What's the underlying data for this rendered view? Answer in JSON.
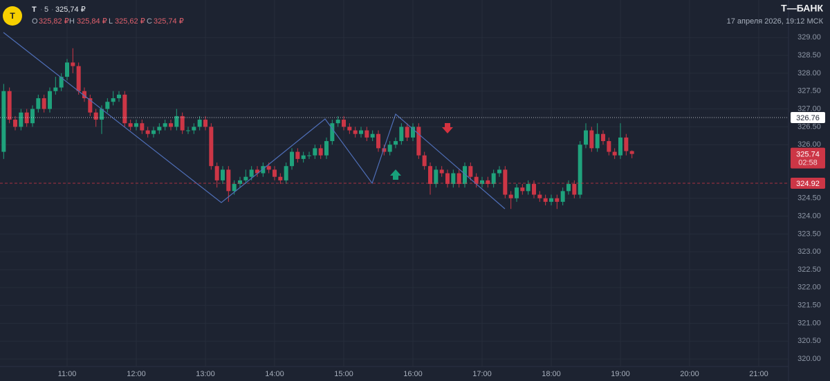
{
  "header": {
    "logo": "T",
    "ticker": "T",
    "interval": "5",
    "price": "325,74 ₽",
    "ohlc": [
      {
        "label": "O",
        "value": "325,82 ₽"
      },
      {
        "label": "H",
        "value": "325,84 ₽"
      },
      {
        "label": "L",
        "value": "325,62 ₽"
      },
      {
        "label": "C",
        "value": "325,74 ₽"
      }
    ],
    "brand": "Т—БАНК",
    "datetime": "17 апреля 2026, 19:12 МСК"
  },
  "chart_data": {
    "type": "candlestick",
    "x": [
      605,
      610,
      615,
      620,
      625,
      630,
      635,
      640,
      645,
      650,
      655,
      660,
      665,
      670,
      675,
      680,
      685,
      690,
      695,
      700,
      705,
      710,
      715,
      720,
      725,
      730,
      735,
      740,
      745,
      750,
      755,
      760,
      765,
      770,
      775,
      780,
      785,
      790,
      795,
      800,
      805,
      810,
      815,
      820,
      825,
      830,
      835,
      840,
      845,
      850,
      855,
      860,
      865,
      870,
      875,
      880,
      885,
      890,
      895,
      900,
      905,
      910,
      915,
      920,
      925,
      930,
      935,
      940,
      945,
      950,
      955,
      960,
      965,
      970,
      975,
      980,
      985,
      990,
      995,
      1000,
      1005,
      1010,
      1015,
      1020,
      1025,
      1030,
      1035,
      1040,
      1045,
      1050,
      1055,
      1060,
      1065,
      1070,
      1075,
      1080,
      1085,
      1090,
      1095,
      1100,
      1105,
      1110,
      1115,
      1120,
      1125,
      1130,
      1135,
      1140,
      1145,
      1150
    ],
    "open": [
      325.8,
      327.5,
      326.7,
      326.5,
      326.9,
      326.6,
      327.0,
      327.3,
      327.0,
      327.5,
      327.6,
      327.9,
      328.3,
      328.2,
      327.5,
      327.3,
      326.9,
      326.7,
      327.0,
      327.2,
      327.3,
      327.4,
      326.6,
      326.5,
      326.6,
      326.4,
      326.3,
      326.4,
      326.5,
      326.6,
      326.5,
      326.8,
      326.4,
      326.4,
      326.5,
      326.7,
      326.5,
      325.4,
      325.0,
      325.3,
      324.7,
      324.9,
      325.0,
      325.1,
      325.3,
      325.2,
      325.4,
      325.3,
      325.1,
      325.0,
      325.4,
      325.8,
      325.6,
      325.7,
      325.7,
      325.9,
      325.7,
      326.1,
      326.6,
      326.7,
      326.5,
      326.4,
      326.3,
      326.4,
      326.2,
      326.3,
      325.9,
      325.8,
      326.0,
      326.1,
      326.5,
      326.2,
      326.5,
      325.7,
      325.4,
      324.9,
      325.3,
      325.2,
      324.9,
      325.2,
      324.9,
      325.4,
      325.1,
      324.9,
      325.0,
      324.9,
      325.2,
      325.3,
      324.6,
      324.5,
      324.8,
      324.7,
      324.9,
      324.6,
      324.5,
      324.4,
      324.5,
      324.4,
      324.7,
      324.9,
      324.6,
      326.0,
      326.4,
      325.9,
      326.3,
      326.1,
      325.8,
      325.7,
      326.2,
      325.82
    ],
    "high": [
      327.7,
      327.6,
      326.8,
      327.0,
      327.0,
      327.1,
      327.4,
      327.4,
      327.6,
      327.9,
      328.0,
      328.4,
      328.7,
      328.3,
      327.6,
      327.4,
      327.0,
      327.1,
      327.3,
      327.5,
      327.5,
      327.5,
      326.7,
      326.7,
      326.7,
      326.5,
      326.5,
      326.6,
      326.7,
      326.7,
      327.0,
      326.9,
      326.5,
      326.6,
      326.8,
      326.8,
      326.6,
      325.5,
      325.4,
      325.4,
      325.0,
      325.1,
      325.3,
      325.4,
      325.4,
      325.5,
      325.5,
      325.4,
      325.2,
      325.5,
      325.9,
      325.9,
      325.8,
      325.8,
      326.0,
      326.0,
      326.2,
      326.7,
      326.8,
      326.8,
      326.6,
      326.5,
      326.5,
      326.5,
      326.4,
      326.4,
      326.0,
      326.1,
      326.2,
      326.6,
      326.6,
      326.6,
      326.6,
      325.8,
      325.5,
      325.4,
      325.4,
      325.3,
      325.3,
      325.3,
      325.5,
      325.5,
      325.2,
      325.1,
      325.1,
      325.3,
      325.4,
      325.4,
      324.7,
      324.9,
      324.9,
      325.0,
      325.0,
      324.7,
      324.6,
      324.6,
      324.6,
      324.8,
      325.0,
      325.0,
      326.1,
      326.6,
      326.5,
      326.6,
      326.4,
      326.2,
      325.9,
      326.6,
      326.3,
      325.84
    ],
    "low": [
      325.6,
      326.6,
      326.4,
      326.4,
      326.5,
      326.5,
      326.9,
      326.9,
      326.9,
      327.4,
      327.5,
      327.8,
      328.0,
      327.4,
      327.2,
      326.8,
      326.5,
      326.3,
      326.9,
      327.1,
      327.2,
      326.5,
      326.4,
      326.4,
      326.3,
      326.2,
      326.2,
      326.3,
      326.4,
      326.4,
      326.4,
      326.3,
      326.3,
      326.3,
      326.4,
      326.4,
      325.3,
      324.8,
      324.9,
      324.4,
      324.6,
      324.8,
      324.9,
      325.0,
      325.1,
      325.1,
      325.2,
      325.0,
      324.9,
      324.9,
      325.3,
      325.5,
      325.5,
      325.6,
      325.6,
      325.6,
      325.6,
      326.0,
      326.5,
      326.4,
      326.3,
      326.2,
      326.2,
      326.1,
      326.1,
      325.8,
      325.7,
      325.7,
      325.9,
      326.0,
      326.1,
      326.1,
      325.6,
      325.3,
      324.6,
      324.8,
      325.1,
      324.8,
      324.8,
      324.8,
      324.8,
      325.0,
      324.8,
      324.8,
      324.8,
      324.8,
      325.1,
      324.5,
      324.2,
      324.4,
      324.6,
      324.6,
      324.5,
      324.4,
      324.3,
      324.3,
      324.2,
      324.3,
      324.6,
      324.5,
      324.5,
      325.9,
      325.8,
      325.8,
      326.0,
      325.7,
      325.6,
      325.6,
      325.7,
      325.62
    ],
    "close": [
      327.5,
      326.7,
      326.5,
      326.9,
      326.6,
      327.0,
      327.3,
      327.0,
      327.5,
      327.6,
      327.9,
      328.3,
      328.2,
      327.5,
      327.3,
      326.9,
      326.7,
      327.0,
      327.2,
      327.3,
      327.4,
      326.6,
      326.5,
      326.6,
      326.4,
      326.3,
      326.4,
      326.5,
      326.6,
      326.5,
      326.8,
      326.4,
      326.4,
      326.5,
      326.7,
      326.5,
      325.4,
      325.0,
      325.3,
      324.7,
      324.9,
      325.0,
      325.1,
      325.3,
      325.2,
      325.4,
      325.3,
      325.1,
      325.0,
      325.4,
      325.8,
      325.6,
      325.7,
      325.7,
      325.9,
      325.7,
      326.1,
      326.6,
      326.7,
      326.5,
      326.4,
      326.3,
      326.4,
      326.2,
      326.3,
      325.9,
      325.8,
      326.0,
      326.1,
      326.5,
      326.2,
      326.5,
      325.7,
      325.4,
      324.9,
      325.3,
      325.2,
      324.9,
      325.2,
      324.9,
      325.4,
      325.1,
      324.9,
      325.0,
      324.9,
      325.2,
      325.3,
      324.6,
      324.5,
      324.8,
      324.7,
      324.9,
      324.6,
      324.5,
      324.4,
      324.5,
      324.4,
      324.7,
      324.9,
      324.6,
      326.0,
      326.4,
      325.9,
      326.3,
      326.1,
      325.8,
      325.7,
      326.2,
      325.82,
      325.74
    ],
    "xlim": [
      601.8,
      1285.8
    ],
    "xticks": [
      {
        "value": 660,
        "label": "11:00"
      },
      {
        "value": 720,
        "label": "12:00"
      },
      {
        "value": 780,
        "label": "13:00"
      },
      {
        "value": 840,
        "label": "14:00"
      },
      {
        "value": 900,
        "label": "15:00"
      },
      {
        "value": 960,
        "label": "16:00"
      },
      {
        "value": 1020,
        "label": "17:00"
      },
      {
        "value": 1080,
        "label": "18:00"
      },
      {
        "value": 1140,
        "label": "19:00"
      },
      {
        "value": 1200,
        "label": "20:00"
      },
      {
        "value": 1260,
        "label": "21:00"
      }
    ],
    "ylim": [
      319.79,
      330.05
    ],
    "yticks": [
      {
        "value": 320,
        "label": "320.00"
      },
      {
        "value": 320.5,
        "label": "320.50"
      },
      {
        "value": 321,
        "label": "321.00"
      },
      {
        "value": 321.5,
        "label": "321.50"
      },
      {
        "value": 322,
        "label": "322.00"
      },
      {
        "value": 322.5,
        "label": "322.50"
      },
      {
        "value": 323,
        "label": "323.00"
      },
      {
        "value": 323.5,
        "label": "323.50"
      },
      {
        "value": 324,
        "label": "324.00"
      },
      {
        "value": 324.5,
        "label": "324.50"
      },
      {
        "value": 326,
        "label": "326.00"
      },
      {
        "value": 326.5,
        "label": "326.50"
      },
      {
        "value": 327,
        "label": "327.00"
      },
      {
        "value": 327.5,
        "label": "327.50"
      },
      {
        "value": 328,
        "label": "328.00"
      },
      {
        "value": 328.5,
        "label": "328.50"
      },
      {
        "value": 329,
        "label": "329.00"
      }
    ],
    "grid": true,
    "up_color": "#1fa27c",
    "down_color": "#cc3646",
    "levels": [
      {
        "value": 326.76,
        "style": "dotted",
        "color": "#d8dce3"
      },
      {
        "value": 324.92,
        "style": "dashed",
        "color": "#cc3646"
      }
    ],
    "last_price": 325.74,
    "countdown": "02:58"
  }
}
